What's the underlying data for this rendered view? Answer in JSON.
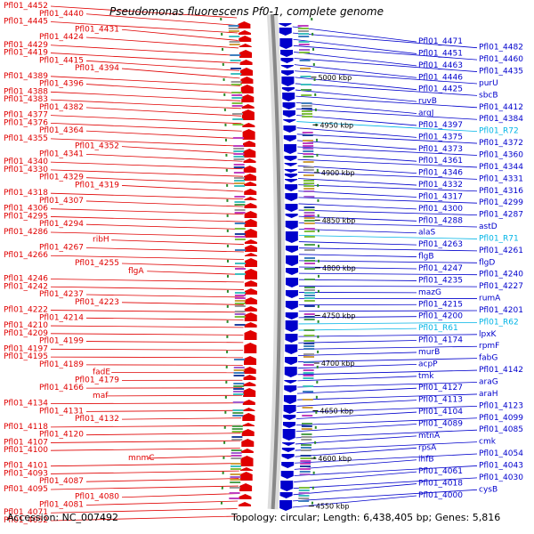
{
  "title": "Pseudomonas fluorescens Pf0-1, complete genome",
  "footer": {
    "accession_label": "Accession:",
    "accession": "NC_007492",
    "topology_label": "Topology:",
    "topology": "circular",
    "length_label": "Length:",
    "length": "6,438,405 bp",
    "genes_label": "Genes:",
    "genes": "5,816"
  },
  "colors": {
    "reverse_strand": "#e00000",
    "forward_strand": "#0000cc",
    "rna": "#00b4e6",
    "backbone": "#888888",
    "tick": "#2a8a2a"
  },
  "scale_marks": [
    {
      "label": "5000 kbp",
      "kbp": 5000
    },
    {
      "label": "4950 kbp",
      "kbp": 4950
    },
    {
      "label": "4900 kbp",
      "kbp": 4900
    },
    {
      "label": "4850 kbp",
      "kbp": 4850
    },
    {
      "label": "4800 kbp",
      "kbp": 4800
    },
    {
      "label": "4750 kbp",
      "kbp": 4750
    },
    {
      "label": "4700 kbp",
      "kbp": 4700
    },
    {
      "label": "4650 kbp",
      "kbp": 4650
    },
    {
      "label": "4600 kbp",
      "kbp": 4600
    },
    {
      "label": "4550 kbp",
      "kbp": 4550
    }
  ],
  "left_labels": [
    "Pfl01_4452",
    "Pfl01_4440",
    "Pfl01_4445",
    "Pfl01_4431",
    "Pfl01_4424",
    "Pfl01_4429",
    "Pfl01_4419",
    "Pfl01_4415",
    "Pfl01_4394",
    "Pfl01_4389",
    "Pfl01_4396",
    "Pfl01_4388",
    "Pfl01_4383",
    "Pfl01_4382",
    "Pfl01_4377",
    "Pfl01_4376",
    "Pfl01_4364",
    "Pfl01_4355",
    "Pfl01_4352",
    "Pfl01_4341",
    "Pfl01_4340",
    "Pfl01_4330",
    "Pfl01_4329",
    "Pfl01_4319",
    "Pfl01_4318",
    "Pfl01_4307",
    "Pfl01_4306",
    "Pfl01_4295",
    "Pfl01_4294",
    "Pfl01_4286",
    "ribH",
    "Pfl01_4267",
    "Pfl01_4266",
    "Pfl01_4255",
    "flgA",
    "Pfl01_4246",
    "Pfl01_4242",
    "Pfl01_4237",
    "Pfl01_4223",
    "Pfl01_4222",
    "Pfl01_4214",
    "Pfl01_4210",
    "Pfl01_4209",
    "Pfl01_4199",
    "Pfl01_4197",
    "Pfl01_4195",
    "Pfl01_4189",
    "fadE",
    "Pfl01_4179",
    "Pfl01_4166",
    "maf",
    "Pfl01_4134",
    "Pfl01_4131",
    "Pfl01_4132",
    "Pfl01_4118",
    "Pfl01_4120",
    "Pfl01_4107",
    "Pfl01_4100",
    "mnmC",
    "Pfl01_4101",
    "Pfl01_4093",
    "Pfl01_4087",
    "Pfl01_4095",
    "Pfl01_4080",
    "Pfl01_4081",
    "Pfl01_4071",
    "Pfl01_4052"
  ],
  "right_labels": [
    "Pfl01_4471",
    "Pfl01_4482",
    "Pfl01_4451",
    "Pfl01_4460",
    "Pfl01_4463",
    "Pfl01_4435",
    "Pfl01_4446",
    "purU",
    "Pfl01_4425",
    "sbcB",
    "ruvB",
    "Pfl01_4412",
    "argJ",
    "Pfl01_4384",
    "Pfl01_4397",
    "Pfl01_R72",
    "Pfl01_4375",
    "Pfl01_4372",
    "Pfl01_4373",
    "Pfl01_4360",
    "Pfl01_4361",
    "Pfl01_4344",
    "Pfl01_4346",
    "Pfl01_4331",
    "Pfl01_4332",
    "Pfl01_4316",
    "Pfl01_4317",
    "Pfl01_4299",
    "Pfl01_4300",
    "Pfl01_4287",
    "Pfl01_4288",
    "astD",
    "alaS",
    "Pfl01_R71",
    "Pfl01_4263",
    "Pfl01_4261",
    "flgB",
    "flgD",
    "Pfl01_4247",
    "Pfl01_4240",
    "Pfl01_4235",
    "Pfl01_4227",
    "mazG",
    "rumA",
    "Pfl01_4215",
    "Pfl01_4201",
    "Pfl01_4200",
    "Pfl01_R62",
    "Pfl01_R61",
    "lpxK",
    "Pfl01_4174",
    "rpmF",
    "murB",
    "fabG",
    "acpP",
    "Pfl01_4142",
    "tmk",
    "araG",
    "Pfl01_4127",
    "araH",
    "Pfl01_4113",
    "Pfl01_4123",
    "Pfl01_4104",
    "Pfl01_4099",
    "Pfl01_4089",
    "Pfl01_4085",
    "mtnA",
    "cmk",
    "rpsA",
    "Pfl01_4054",
    "ihfB",
    "Pfl01_4043",
    "Pfl01_4061",
    "Pfl01_4030",
    "Pfl01_4018",
    "cysB",
    "Pfl01_4000"
  ]
}
